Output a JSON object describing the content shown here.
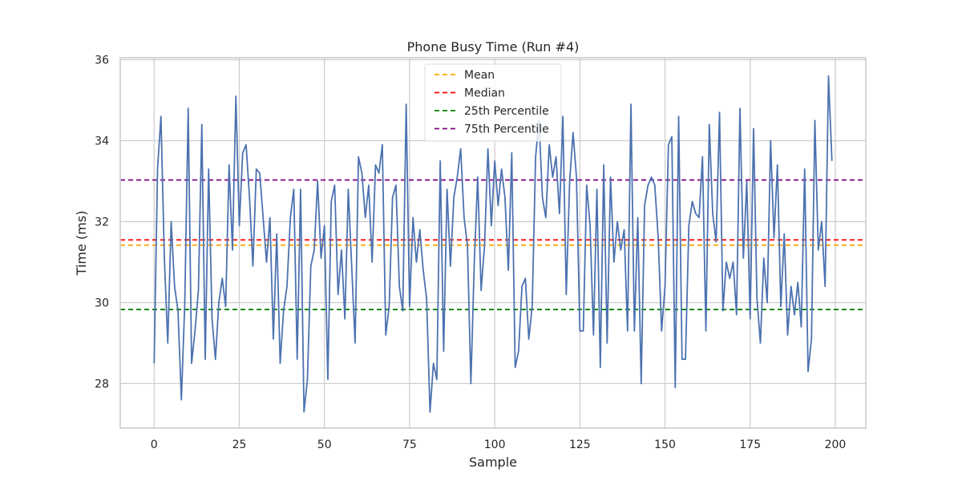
{
  "chart_data": {
    "type": "line",
    "title": "Phone Busy Time (Run #4)",
    "xlabel": "Sample",
    "ylabel": "Time (ms)",
    "xlim": [
      -9.95,
      208.95
    ],
    "ylim": [
      26.9,
      36.05
    ],
    "xticks": [
      0,
      25,
      50,
      75,
      100,
      125,
      150,
      175,
      200
    ],
    "yticks": [
      28,
      30,
      32,
      34,
      36
    ],
    "grid": true,
    "legend_position": "top-center",
    "series": [
      {
        "color": "#4c72b0",
        "x": [
          0,
          1,
          2,
          3,
          4,
          5,
          6,
          7,
          8,
          9,
          10,
          11,
          12,
          13,
          14,
          15,
          16,
          17,
          18,
          19,
          20,
          21,
          22,
          23,
          24,
          25,
          26,
          27,
          28,
          29,
          30,
          31,
          32,
          33,
          34,
          35,
          36,
          37,
          38,
          39,
          40,
          41,
          42,
          43,
          44,
          45,
          46,
          47,
          48,
          49,
          50,
          51,
          52,
          53,
          54,
          55,
          56,
          57,
          58,
          59,
          60,
          61,
          62,
          63,
          64,
          65,
          66,
          67,
          68,
          69,
          70,
          71,
          72,
          73,
          74,
          75,
          76,
          77,
          78,
          79,
          80,
          81,
          82,
          83,
          84,
          85,
          86,
          87,
          88,
          89,
          90,
          91,
          92,
          93,
          94,
          95,
          96,
          97,
          98,
          99,
          100,
          101,
          102,
          103,
          104,
          105,
          106,
          107,
          108,
          109,
          110,
          111,
          112,
          113,
          114,
          115,
          116,
          117,
          118,
          119,
          120,
          121,
          122,
          123,
          124,
          125,
          126,
          127,
          128,
          129,
          130,
          131,
          132,
          133,
          134,
          135,
          136,
          137,
          138,
          139,
          140,
          141,
          142,
          143,
          144,
          145,
          146,
          147,
          148,
          149,
          150,
          151,
          152,
          153,
          154,
          155,
          156,
          157,
          158,
          159,
          160,
          161,
          162,
          163,
          164,
          165,
          166,
          167,
          168,
          169,
          170,
          171,
          172,
          173,
          174,
          175,
          176,
          177,
          178,
          179,
          180,
          181,
          182,
          183,
          184,
          185,
          186,
          187,
          188,
          189,
          190,
          191,
          192,
          193,
          194,
          195,
          196,
          197,
          198,
          199
        ],
        "y": [
          28.5,
          33.3,
          34.6,
          31.1,
          29.0,
          32.0,
          30.4,
          29.8,
          27.6,
          30.0,
          34.8,
          28.5,
          29.3,
          30.3,
          34.4,
          28.6,
          33.3,
          29.6,
          28.6,
          30.0,
          30.6,
          29.9,
          33.4,
          31.3,
          35.1,
          31.9,
          33.7,
          33.9,
          32.6,
          30.9,
          33.3,
          33.2,
          32.1,
          31.0,
          32.1,
          29.1,
          31.7,
          28.5,
          29.8,
          30.4,
          32.1,
          32.8,
          28.6,
          32.8,
          27.3,
          28.1,
          30.9,
          31.3,
          33.0,
          31.1,
          31.9,
          28.1,
          32.5,
          32.9,
          30.2,
          31.3,
          29.6,
          32.8,
          30.9,
          29.0,
          33.6,
          33.2,
          32.1,
          32.9,
          31.0,
          33.4,
          33.2,
          33.9,
          29.2,
          29.9,
          32.6,
          32.9,
          30.4,
          29.8,
          34.9,
          29.9,
          32.1,
          31.0,
          31.8,
          30.8,
          30.1,
          27.3,
          28.5,
          28.1,
          33.5,
          28.8,
          32.8,
          30.9,
          32.6,
          33.1,
          33.8,
          32.1,
          31.4,
          28.0,
          31.0,
          33.1,
          30.3,
          31.4,
          33.8,
          31.9,
          33.5,
          32.4,
          33.3,
          32.6,
          30.8,
          33.7,
          28.4,
          28.8,
          30.4,
          30.6,
          29.1,
          29.9,
          33.6,
          34.5,
          32.6,
          32.1,
          33.9,
          33.1,
          33.6,
          32.2,
          34.6,
          30.2,
          33.0,
          34.2,
          33.1,
          29.3,
          29.3,
          32.9,
          31.9,
          29.2,
          32.8,
          28.4,
          33.4,
          29.0,
          33.1,
          31.0,
          32.0,
          31.3,
          31.8,
          29.3,
          34.9,
          29.3,
          32.1,
          28.0,
          32.4,
          32.9,
          33.1,
          32.9,
          31.6,
          29.3,
          30.4,
          33.9,
          34.1,
          27.9,
          34.6,
          28.6,
          28.6,
          31.9,
          32.5,
          32.2,
          32.1,
          33.6,
          29.3,
          34.4,
          32.2,
          31.5,
          34.7,
          29.8,
          31.0,
          30.6,
          31.0,
          29.7,
          34.8,
          31.1,
          33.0,
          29.6,
          34.3,
          30.1,
          29.0,
          31.1,
          30.0,
          34.0,
          31.6,
          33.4,
          29.9,
          31.7,
          29.2,
          30.4,
          29.7,
          30.5,
          29.4,
          33.3,
          28.3,
          29.1,
          34.5,
          31.3,
          32.0,
          30.4,
          35.6,
          33.5
        ]
      }
    ],
    "reference_lines": [
      {
        "name": "Mean",
        "value": 31.42,
        "color": "#ffa500"
      },
      {
        "name": "Median",
        "value": 31.55,
        "color": "#ff0000"
      },
      {
        "name": "25th Percentile",
        "value": 29.83,
        "color": "#008000"
      },
      {
        "name": "75th Percentile",
        "value": 33.03,
        "color": "#800080"
      }
    ]
  }
}
